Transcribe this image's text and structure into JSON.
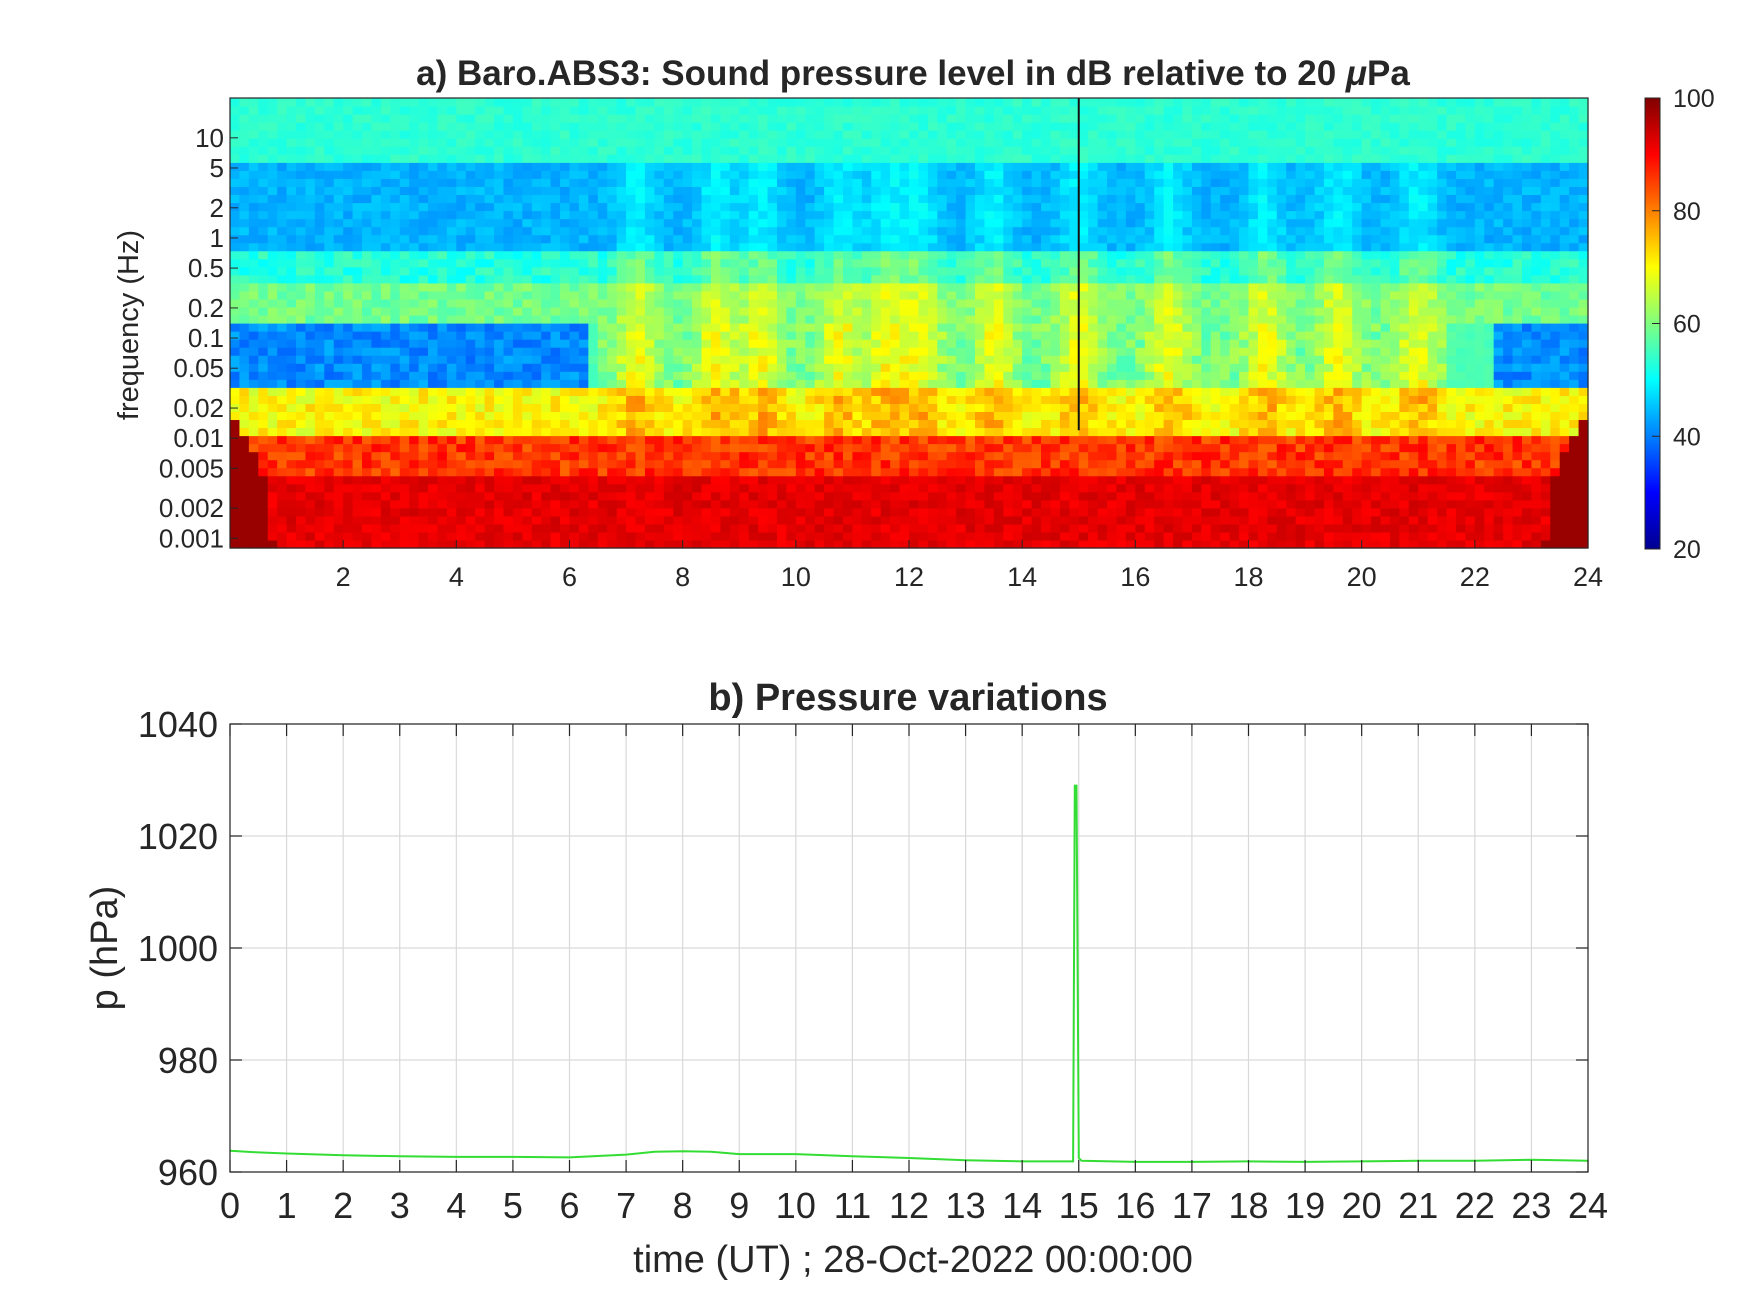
{
  "chart_data": [
    {
      "type": "heatmap",
      "title": "a) Baro.ABS3: Sound pressure level in dB relative to 20 μPa",
      "title_prefix": "a) Baro.ABS3: Sound pressure level in dB relative to 20 ",
      "title_mu": "μ",
      "title_suffix": "Pa",
      "ylabel": "frequency (Hz)",
      "xlabel": "",
      "y_scale": "log",
      "xlim": [
        0,
        24
      ],
      "ylim": [
        0.0008,
        25
      ],
      "xticks": [
        2,
        4,
        6,
        8,
        10,
        12,
        14,
        16,
        18,
        20,
        22,
        24
      ],
      "xtick_labels": [
        "2",
        "4",
        "6",
        "8",
        "10",
        "12",
        "14",
        "16",
        "18",
        "20",
        "22",
        "24"
      ],
      "yticks": [
        0.001,
        0.002,
        0.005,
        0.01,
        0.02,
        0.05,
        0.1,
        0.2,
        0.5,
        1,
        2,
        5,
        10
      ],
      "ytick_labels": [
        "0.001",
        "0.002",
        "0.005",
        "0.01",
        "0.02",
        "0.05",
        "0.1",
        "0.2",
        "0.5",
        "1",
        "2",
        "5",
        "10"
      ],
      "colormap": "jet",
      "colorbar": {
        "range": [
          20,
          100
        ],
        "ticks": [
          20,
          40,
          60,
          80,
          100
        ],
        "tick_labels": [
          "20",
          "40",
          "60",
          "80",
          "100"
        ]
      },
      "features": {
        "spike_time": 15.0,
        "mid_band_level_db": 55,
        "upper_band_level_db": 42,
        "top_band_level_db": 52,
        "low_freq_level_db": 90,
        "quiet_notch_level_db": 38
      }
    },
    {
      "type": "line",
      "title": "b) Pressure variations",
      "xlabel": "time (UT) ; 28-Oct-2022 00:00:00",
      "ylabel": "p (hPa)",
      "xlim": [
        0,
        24
      ],
      "ylim": [
        960,
        1040
      ],
      "grid": true,
      "xticks": [
        0,
        1,
        2,
        3,
        4,
        5,
        6,
        7,
        8,
        9,
        10,
        11,
        12,
        13,
        14,
        15,
        16,
        17,
        18,
        19,
        20,
        21,
        22,
        23,
        24
      ],
      "xtick_labels": [
        "0",
        "1",
        "2",
        "3",
        "4",
        "5",
        "6",
        "7",
        "8",
        "9",
        "10",
        "11",
        "12",
        "13",
        "14",
        "15",
        "16",
        "17",
        "18",
        "19",
        "20",
        "21",
        "22",
        "23",
        "24"
      ],
      "yticks": [
        960,
        980,
        1000,
        1020,
        1040
      ],
      "ytick_labels": [
        "960",
        "980",
        "1000",
        "1020",
        "1040"
      ],
      "line_color": "#33dd33",
      "series": [
        {
          "x": [
            0,
            0.5,
            1,
            2,
            3,
            4,
            5,
            6,
            7,
            7.5,
            8,
            8.5,
            9,
            10,
            11,
            12,
            13,
            14,
            14.9,
            14.93,
            14.96,
            15.0,
            15.05,
            16,
            17,
            18,
            19,
            20,
            21,
            22,
            23,
            24
          ],
          "y": [
            963.8,
            963.5,
            963.3,
            963.0,
            962.8,
            962.7,
            962.7,
            962.6,
            963.1,
            963.6,
            963.7,
            963.6,
            963.2,
            963.2,
            962.8,
            962.5,
            962.1,
            961.9,
            961.9,
            1029,
            1029,
            962.5,
            962.0,
            961.8,
            961.8,
            961.9,
            961.8,
            961.9,
            962.0,
            962.0,
            962.2,
            962.0
          ]
        }
      ]
    }
  ]
}
